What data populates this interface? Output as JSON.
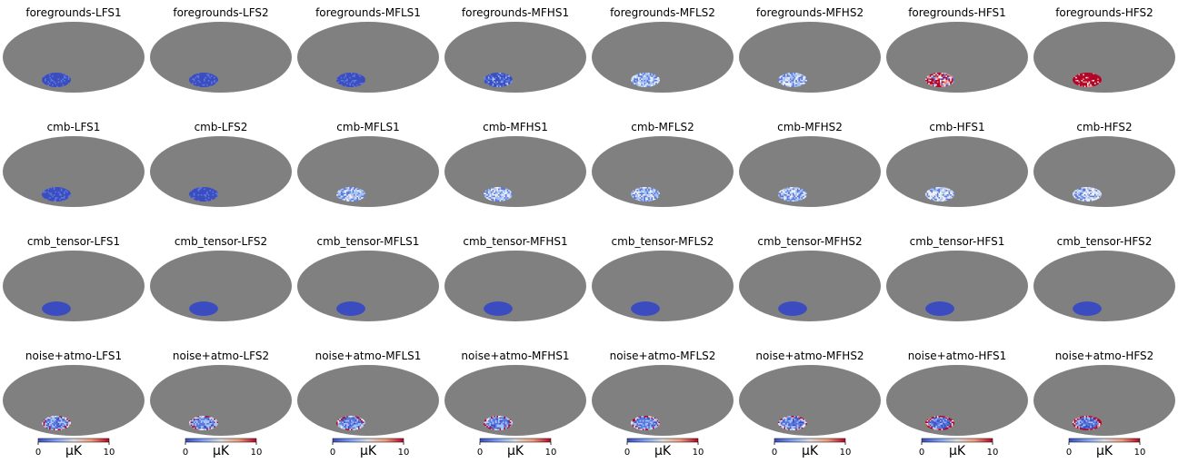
{
  "figure": {
    "background": "#ffffff",
    "sky_color": "#808080",
    "rows": [
      {
        "name": "foregrounds",
        "panels": [
          {
            "title": "foregrounds-LFS1",
            "style": "uniform-blue"
          },
          {
            "title": "foregrounds-LFS2",
            "style": "uniform-blue"
          },
          {
            "title": "foregrounds-MFLS1",
            "style": "uniform-blue"
          },
          {
            "title": "foregrounds-MFHS1",
            "style": "speckled-blue"
          },
          {
            "title": "foregrounds-MFLS2",
            "style": "light-speckled"
          },
          {
            "title": "foregrounds-MFHS2",
            "style": "light-speckled"
          },
          {
            "title": "foregrounds-HFS1",
            "style": "red-mixed"
          },
          {
            "title": "foregrounds-HFS2",
            "style": "red-dense"
          }
        ]
      },
      {
        "name": "cmb",
        "panels": [
          {
            "title": "cmb-LFS1",
            "style": "uniform-blue"
          },
          {
            "title": "cmb-LFS2",
            "style": "uniform-blue"
          },
          {
            "title": "cmb-MFLS1",
            "style": "light-speckled"
          },
          {
            "title": "cmb-MFHS1",
            "style": "light-speckled"
          },
          {
            "title": "cmb-MFLS2",
            "style": "light-speckled"
          },
          {
            "title": "cmb-MFHS2",
            "style": "light-speckled"
          },
          {
            "title": "cmb-HFS1",
            "style": "white-speckled"
          },
          {
            "title": "cmb-HFS2",
            "style": "white-speckled"
          }
        ]
      },
      {
        "name": "cmb_tensor",
        "panels": [
          {
            "title": "cmb_tensor-LFS1",
            "style": "solid-blue"
          },
          {
            "title": "cmb_tensor-LFS2",
            "style": "solid-blue"
          },
          {
            "title": "cmb_tensor-MFLS1",
            "style": "solid-blue"
          },
          {
            "title": "cmb_tensor-MFHS1",
            "style": "solid-blue"
          },
          {
            "title": "cmb_tensor-MFLS2",
            "style": "solid-blue"
          },
          {
            "title": "cmb_tensor-MFHS2",
            "style": "solid-blue"
          },
          {
            "title": "cmb_tensor-HFS1",
            "style": "solid-blue"
          },
          {
            "title": "cmb_tensor-HFS2",
            "style": "solid-blue"
          }
        ]
      },
      {
        "name": "noise+atmo",
        "panels": [
          {
            "title": "noise+atmo-LFS1",
            "style": "noisy-edge"
          },
          {
            "title": "noise+atmo-LFS2",
            "style": "noisy-edge"
          },
          {
            "title": "noise+atmo-MFLS1",
            "style": "noisy-edge"
          },
          {
            "title": "noise+atmo-MFHS1",
            "style": "noisy-edge"
          },
          {
            "title": "noise+atmo-MFLS2",
            "style": "noisy-edge"
          },
          {
            "title": "noise+atmo-MFHS2",
            "style": "noisy-edge"
          },
          {
            "title": "noise+atmo-HFS1",
            "style": "noisy-edge-red"
          },
          {
            "title": "noise+atmo-HFS2",
            "style": "noisy-edge-red"
          }
        ]
      }
    ],
    "colorbar": {
      "min_label": "0",
      "max_label": "10",
      "unit": "μK",
      "colormap": "coolwarm"
    },
    "colors": {
      "blue": "#3b4cc0",
      "mid_blue": "#5a78e0",
      "light_blue": "#a6c4f5",
      "white": "#f0f0f0",
      "red": "#b40426",
      "pink": "#f08a8a"
    }
  }
}
